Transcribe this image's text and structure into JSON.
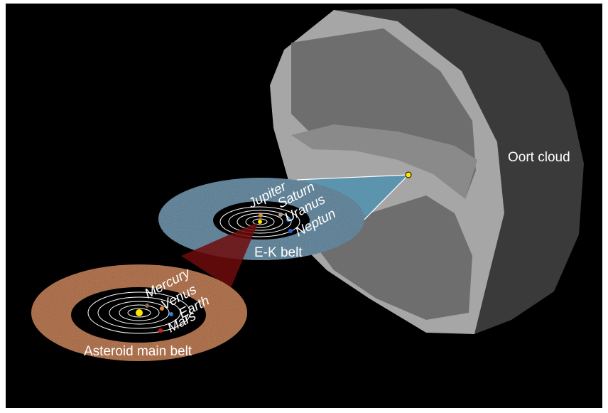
{
  "colors": {
    "background": "#000000",
    "oort_outer": "#9c9c9c",
    "oort_side": "#3a3a3a",
    "oort_inner": "#6e6e6e",
    "kuiper_belt": "#4d6f86",
    "asteroid_belt": "#9a5a36",
    "zoom_kuiper": "#4d91ad",
    "zoom_asteroid": "#6e0c0c",
    "orbit_line": "#ffffff",
    "sun": "#ffe600"
  },
  "labels": {
    "oort_cloud": "Oort cloud",
    "ek_belt": "E-K belt",
    "asteroid_belt": "Asteroid main belt"
  },
  "outer_planets": [
    {
      "name": "Jupiter",
      "color": "#e08a3c"
    },
    {
      "name": "Saturn",
      "color": "#b89a8a"
    },
    {
      "name": "Uranus",
      "color": "#2f7fd0"
    },
    {
      "name": "Neptun",
      "color": "#2f5fd0"
    }
  ],
  "inner_planets": [
    {
      "name": "Mercury",
      "color": "#8a6a4a"
    },
    {
      "name": "Venus",
      "color": "#e08a3c"
    },
    {
      "name": "Earth",
      "color": "#2f7fd0"
    },
    {
      "name": "Mars",
      "color": "#e01818"
    }
  ],
  "icons": [
    "sun-icon",
    "planet-icon"
  ]
}
